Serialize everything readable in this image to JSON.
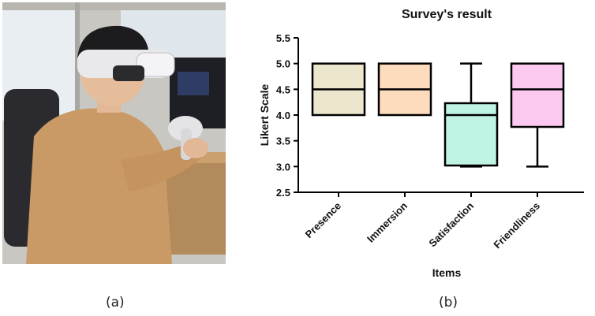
{
  "panels": {
    "left_caption": "(a)",
    "right_caption": "(b)"
  },
  "chart_data": {
    "type": "box",
    "title": "Survey's result",
    "xlabel": "Items",
    "ylabel": "Likert Scale",
    "ylim": [
      2.5,
      5.5
    ],
    "yticks": [
      "2.5",
      "3.0",
      "3.5",
      "4.0",
      "4.5",
      "5.0",
      "5.5"
    ],
    "grid": false,
    "categories": [
      "Presence",
      "Immersion",
      "Satisfaction",
      "Friendliness"
    ],
    "boxes": [
      {
        "category": "Presence",
        "min": 4.0,
        "q1": 4.0,
        "median": 4.5,
        "q3": 5.0,
        "max": 5.0,
        "color": "#ece6cd"
      },
      {
        "category": "Immersion",
        "min": 4.0,
        "q1": 4.0,
        "median": 4.5,
        "q3": 5.0,
        "max": 5.0,
        "color": "#fcdcbc"
      },
      {
        "category": "Satisfaction",
        "min": 3.0,
        "q1": 3.02,
        "median": 4.0,
        "q3": 4.23,
        "max": 5.0,
        "color": "#bff4e4"
      },
      {
        "category": "Friendliness",
        "min": 3.0,
        "q1": 3.77,
        "median": 4.5,
        "q3": 5.0,
        "max": 5.0,
        "color": "#fbc9f0"
      }
    ]
  }
}
